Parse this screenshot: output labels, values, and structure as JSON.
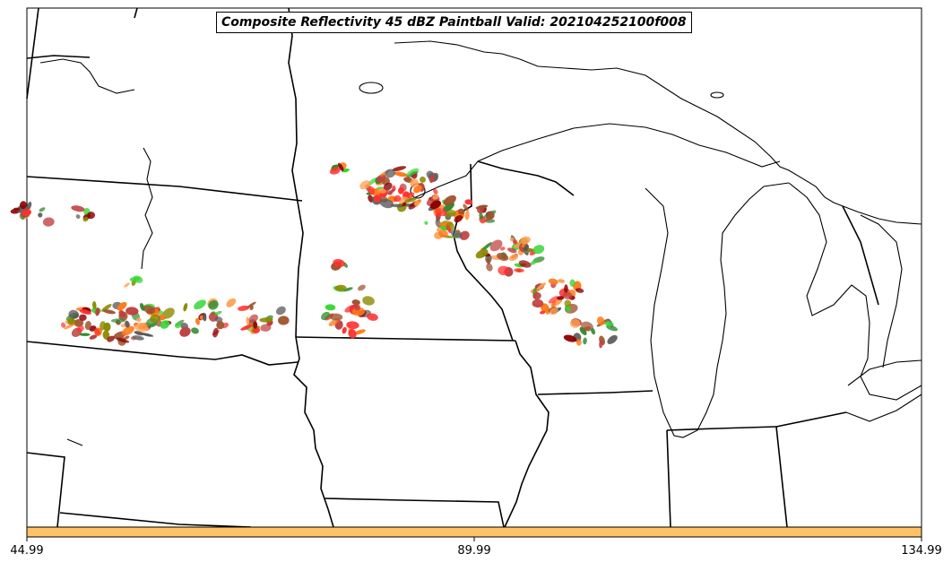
{
  "map": {
    "title": "Composite Reflectivity 45 dBZ Paintball Valid: 202104252100f008",
    "region": "Upper Midwest / Great Lakes, USA",
    "layers": [
      "state-borders",
      "coastlines",
      "great-lakes",
      "reflectivity-paintball"
    ],
    "colors": {
      "border": "#000000",
      "background": "#ffffff",
      "colorbar": "#ffc266"
    },
    "paintball_palette": [
      "#ff3030",
      "#ff7a1a",
      "#ffa050",
      "#33d633",
      "#2e8b2e",
      "#8b0000",
      "#a0522d",
      "#8b8b00",
      "#5a5a5a",
      "#c04040"
    ]
  },
  "colorbar": {
    "color": "#ffc266",
    "ticks": [
      "44.99",
      "89.99",
      "134.99"
    ],
    "range": [
      44.99,
      134.99
    ]
  }
}
